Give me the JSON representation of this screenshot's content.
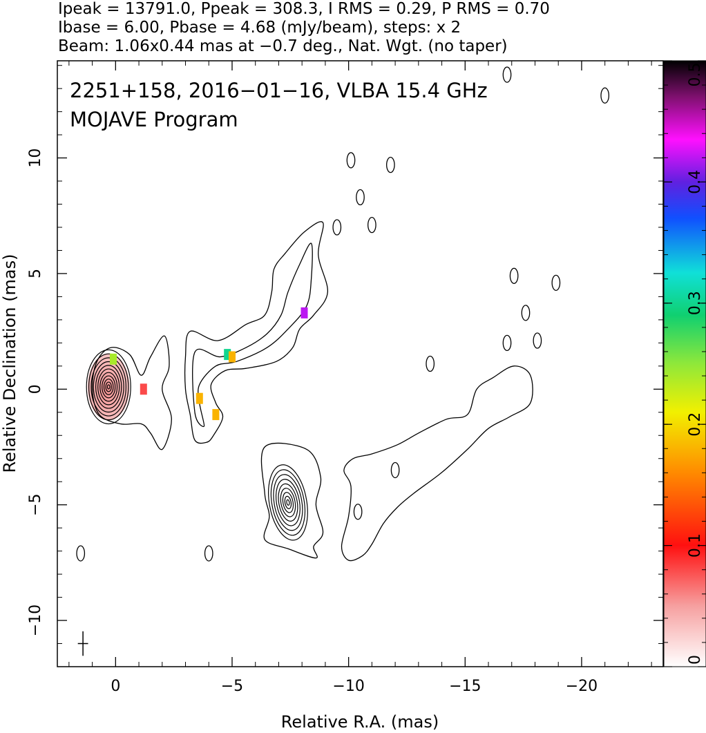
{
  "chart_data": {
    "type": "contour",
    "header_lines": [
      "Ipeak = 13791.0, Ppeak = 308.3, I RMS = 0.29, P RMS = 0.70",
      "Ibase = 6.00, Pbase = 4.68 (mJy/beam), steps: x 2",
      "Beam: 1.06x0.44 mas at −0.7 deg., Nat. Wgt. (no taper)"
    ],
    "annotations": [
      "2251+158, 2016−01−16, VLBA 15.4 GHz",
      "MOJAVE Program"
    ],
    "xlabel": "Relative R.A. (mas)",
    "ylabel": "Relative Declination (mas)",
    "xlim": [
      2.5,
      -23.5
    ],
    "ylim": [
      -12,
      14.2
    ],
    "x_ticks": [
      0,
      -5,
      -10,
      -15,
      -20
    ],
    "y_ticks": [
      -10,
      -5,
      0,
      5,
      10
    ],
    "x_tick_labels": [
      "0",
      "−5",
      "−10",
      "−15",
      "−20"
    ],
    "y_tick_labels": [
      "−10",
      "−5",
      "0",
      "5",
      "10"
    ],
    "colorbar": {
      "range": [
        0,
        0.5
      ],
      "ticks": [
        0,
        0.1,
        0.2,
        0.3,
        0.4,
        0.5
      ],
      "tick_labels": [
        "0",
        "0.1",
        "0.2",
        "0.3",
        "0.4",
        "0.5"
      ]
    },
    "components": [
      {
        "x": 0.3,
        "y": 0.1
      },
      {
        "x": -7.4,
        "y": -4.9
      }
    ],
    "beam": {
      "x": 1.4,
      "y": -11,
      "major_mas": 1.06,
      "minor_mas": 0.44,
      "pa_deg": -0.7
    },
    "contours": [
      {
        "points": [
          [
            0.2,
            1.8
          ],
          [
            -0.6,
            1.5
          ],
          [
            -1.1,
            0.6
          ],
          [
            -1.5,
            1.4
          ],
          [
            -2.1,
            2.3
          ],
          [
            -2.3,
            1
          ],
          [
            -2,
            0
          ],
          [
            -2.4,
            -1.3
          ],
          [
            -2,
            -2.6
          ],
          [
            -1.5,
            -1.9
          ],
          [
            -1.1,
            -1.5
          ],
          [
            -0.2,
            -1.5
          ],
          [
            0.7,
            -1.1
          ],
          [
            1,
            0
          ],
          [
            0.8,
            1.2
          ]
        ]
      },
      {
        "points": [
          [
            -3.2,
            2.5
          ],
          [
            -4.4,
            2.1
          ],
          [
            -5.6,
            2.8
          ],
          [
            -6.4,
            3.2
          ],
          [
            -6.7,
            4.2
          ],
          [
            -6.8,
            5.2
          ],
          [
            -7.3,
            5.9
          ],
          [
            -8.1,
            6.8
          ],
          [
            -8.9,
            7.2
          ],
          [
            -8.7,
            5.8
          ],
          [
            -9.1,
            4.2
          ],
          [
            -8.5,
            3.2
          ],
          [
            -7.9,
            2.6
          ],
          [
            -7.6,
            1.8
          ],
          [
            -6.9,
            1.2
          ],
          [
            -5.6,
            0.9
          ],
          [
            -4.7,
            0.8
          ],
          [
            -4.1,
            0.2
          ],
          [
            -4.3,
            -0.6
          ],
          [
            -4.6,
            -1.2
          ],
          [
            -4.2,
            -2
          ],
          [
            -3.9,
            -2.3
          ],
          [
            -3.4,
            -2.2
          ],
          [
            -3.2,
            -1.1
          ],
          [
            -3,
            0
          ],
          [
            -3,
            1.4
          ]
        ]
      },
      {
        "points": [
          [
            -3.4,
            1.6
          ],
          [
            -4.5,
            1.4
          ],
          [
            -5.6,
            1.8
          ],
          [
            -6.5,
            2.4
          ],
          [
            -7.1,
            3.2
          ],
          [
            -7.4,
            4.2
          ],
          [
            -7.9,
            5.4
          ],
          [
            -8.4,
            6.3
          ],
          [
            -8.4,
            4.8
          ],
          [
            -8.2,
            3.6
          ],
          [
            -7.4,
            2.6
          ],
          [
            -6.5,
            1.8
          ],
          [
            -5.2,
            1.2
          ],
          [
            -4.3,
            1
          ],
          [
            -3.6,
            0.2
          ],
          [
            -3.6,
            -0.6
          ],
          [
            -3.8,
            -1.6
          ],
          [
            -3.4,
            -1
          ]
        ]
      },
      {
        "points": [
          [
            -6.4,
            -2.5
          ],
          [
            -8.2,
            -2.6
          ],
          [
            -8.8,
            -3.8
          ],
          [
            -8.6,
            -5
          ],
          [
            -8.9,
            -6.2
          ],
          [
            -8.5,
            -6.8
          ],
          [
            -8.6,
            -7.3
          ],
          [
            -7.4,
            -6.9
          ],
          [
            -6.4,
            -6.5
          ],
          [
            -6.6,
            -5.5
          ],
          [
            -6.4,
            -4.5
          ]
        ]
      },
      {
        "points": [
          [
            -10.2,
            -3
          ],
          [
            -11,
            -2.8
          ],
          [
            -12.1,
            -2.4
          ],
          [
            -13,
            -1.9
          ],
          [
            -14.2,
            -1.3
          ],
          [
            -15.1,
            -1.1
          ],
          [
            -15.5,
            0
          ],
          [
            -16.2,
            0.5
          ],
          [
            -17.1,
            1
          ],
          [
            -17.8,
            0.6
          ],
          [
            -17.8,
            -0.6
          ],
          [
            -16.9,
            -1.2
          ],
          [
            -16,
            -1.7
          ],
          [
            -15.1,
            -2.6
          ],
          [
            -14,
            -3.6
          ],
          [
            -12.8,
            -4.5
          ],
          [
            -12.1,
            -5.1
          ],
          [
            -11.5,
            -5.8
          ],
          [
            -11,
            -6.7
          ],
          [
            -10.6,
            -7.2
          ],
          [
            -10,
            -7.4
          ],
          [
            -9.7,
            -6.8
          ],
          [
            -10,
            -5.5
          ],
          [
            -10.1,
            -4.2
          ],
          [
            -9.8,
            -3.5
          ]
        ]
      }
    ],
    "isolated_contours": [
      {
        "x": -10.1,
        "y": 9.9
      },
      {
        "x": -11.8,
        "y": 9.7
      },
      {
        "x": -10.5,
        "y": 8.3
      },
      {
        "x": -9.5,
        "y": 7
      },
      {
        "x": -11,
        "y": 7.1
      },
      {
        "x": -17.1,
        "y": 4.9
      },
      {
        "x": -18.9,
        "y": 4.6
      },
      {
        "x": -17.6,
        "y": 3.3
      },
      {
        "x": -16.8,
        "y": 2
      },
      {
        "x": -18.1,
        "y": 2.1
      },
      {
        "x": -16.8,
        "y": 13.6
      },
      {
        "x": -21,
        "y": 12.7
      },
      {
        "x": 1.5,
        "y": -7.1
      },
      {
        "x": -4,
        "y": -7.1
      },
      {
        "x": -12,
        "y": -3.5
      },
      {
        "x": -10.4,
        "y": -5.3
      },
      {
        "x": -13.5,
        "y": 1.1
      }
    ],
    "polarization_patches": [
      {
        "x": -3.6,
        "y": -0.4,
        "value": 0.18
      },
      {
        "x": -4.8,
        "y": 1.5,
        "value": 0.3
      },
      {
        "x": -5,
        "y": 1.4,
        "value": 0.18
      },
      {
        "x": -8.1,
        "y": 3.3,
        "value": 0.42
      },
      {
        "x": -4.3,
        "y": -1.1,
        "value": 0.18
      },
      {
        "x": 0.1,
        "y": 1.3,
        "value": 0.24
      },
      {
        "x": -1.2,
        "y": 0,
        "value": 0.08
      }
    ],
    "colors": {
      "contour": "#000000",
      "core_shading": "#f2a5a5"
    }
  }
}
